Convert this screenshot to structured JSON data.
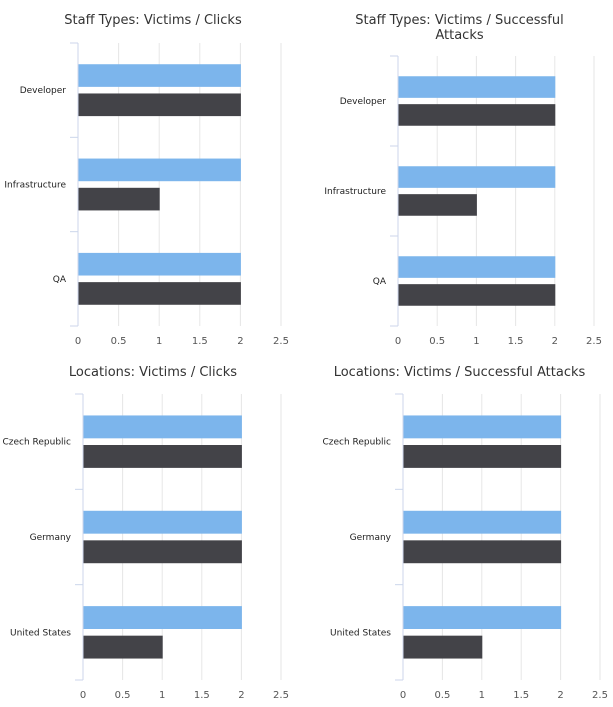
{
  "colors": {
    "victims": "#7cb5ec",
    "second": "#434348",
    "grid": "#e6e6e6",
    "axis": "#ccd6eb"
  },
  "charts": [
    {
      "title": "Staff Types: Victims / Clicks",
      "chart_data": {
        "type": "bar",
        "orientation": "horizontal",
        "categories": [
          "Developer",
          "Infrastructure",
          "QA"
        ],
        "series": [
          {
            "values": [
              2,
              2,
              2
            ]
          },
          {
            "values": [
              2,
              1,
              2
            ]
          }
        ],
        "xlim": [
          0,
          2.5
        ],
        "xticks": [
          "0",
          "0.5",
          "1",
          "1.5",
          "2",
          "2.5"
        ],
        "grid": true,
        "legend": "none"
      }
    },
    {
      "title": "Staff Types: Victims / Successful Attacks",
      "chart_data": {
        "type": "bar",
        "orientation": "horizontal",
        "categories": [
          "Developer",
          "Infrastructure",
          "QA"
        ],
        "series": [
          {
            "values": [
              2,
              2,
              2
            ]
          },
          {
            "values": [
              2,
              1,
              2
            ]
          }
        ],
        "xlim": [
          0,
          2.5
        ],
        "xticks": [
          "0",
          "0.5",
          "1",
          "1.5",
          "2",
          "2.5"
        ],
        "grid": true,
        "legend": "none"
      }
    },
    {
      "title": "Locations: Victims / Clicks",
      "chart_data": {
        "type": "bar",
        "orientation": "horizontal",
        "categories": [
          "Czech Republic",
          "Germany",
          "United States"
        ],
        "series": [
          {
            "values": [
              2,
              2,
              2
            ]
          },
          {
            "values": [
              2,
              2,
              1
            ]
          }
        ],
        "xlim": [
          0,
          2.5
        ],
        "xticks": [
          "0",
          "0.5",
          "1",
          "1.5",
          "2",
          "2.5"
        ],
        "grid": true,
        "legend": "none"
      }
    },
    {
      "title": "Locations: Victims / Successful Attacks",
      "chart_data": {
        "type": "bar",
        "orientation": "horizontal",
        "categories": [
          "Czech Republic",
          "Germany",
          "United States"
        ],
        "series": [
          {
            "values": [
              2,
              2,
              2
            ]
          },
          {
            "values": [
              2,
              2,
              1
            ]
          }
        ],
        "xlim": [
          0,
          2.5
        ],
        "xticks": [
          "0",
          "0.5",
          "1",
          "1.5",
          "2",
          "2.5"
        ],
        "grid": true,
        "legend": "none"
      }
    }
  ]
}
